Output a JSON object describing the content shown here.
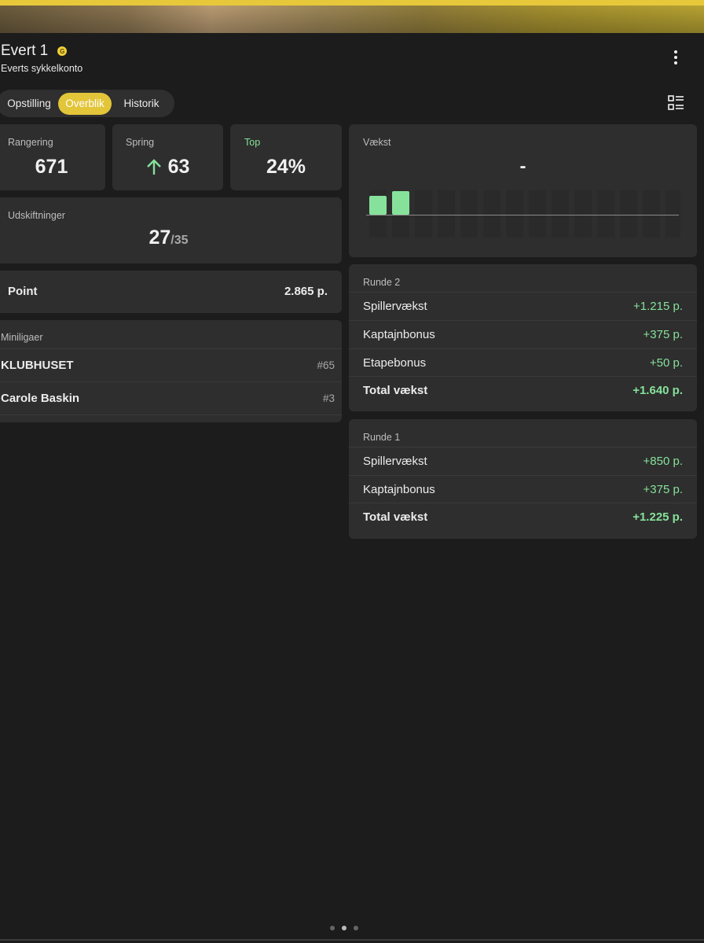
{
  "header": {
    "team_name": "Evert 1",
    "badge_letter": "G",
    "account_name": "Everts sykkelkonto"
  },
  "tabs": [
    {
      "label": "Opstilling",
      "active": false
    },
    {
      "label": "Overblik",
      "active": true
    },
    {
      "label": "Historik",
      "active": false
    }
  ],
  "stats": {
    "ranking": {
      "label": "Rangering",
      "value": "671"
    },
    "jump": {
      "label": "Spring",
      "value": "63",
      "direction": "up"
    },
    "top": {
      "label": "Top",
      "value": "24%"
    },
    "transfers": {
      "label": "Udskiftninger",
      "used": "27",
      "total": "/35"
    }
  },
  "points": {
    "label": "Point",
    "value": "2.865 p."
  },
  "minileagues": {
    "title": "Miniligaer",
    "items": [
      {
        "name": "KLUBHUSET",
        "rank": "#65"
      },
      {
        "name": "Carole Baskin",
        "rank": "#3"
      }
    ]
  },
  "growth": {
    "label": "Vækst",
    "value": "-",
    "bars": [
      0.8,
      1.0
    ]
  },
  "rounds": [
    {
      "title": "Runde 2",
      "rows": [
        {
          "label": "Spillervækst",
          "value": "+1.215 p."
        },
        {
          "label": "Kaptajnbonus",
          "value": "+375 p."
        },
        {
          "label": "Etapebonus",
          "value": "+50 p."
        }
      ],
      "total": {
        "label": "Total vækst",
        "value": "+1.640 p."
      }
    },
    {
      "title": "Runde 1",
      "rows": [
        {
          "label": "Spillervækst",
          "value": "+850 p."
        },
        {
          "label": "Kaptajnbonus",
          "value": "+375 p."
        }
      ],
      "total": {
        "label": "Total vækst",
        "value": "+1.225 p."
      }
    }
  ],
  "colors": {
    "accent": "#e3c53a",
    "positive": "#86e29a",
    "background": "#1c1c1c",
    "card": "#2e2e2e"
  },
  "pager": {
    "count": 3,
    "active": 1
  }
}
